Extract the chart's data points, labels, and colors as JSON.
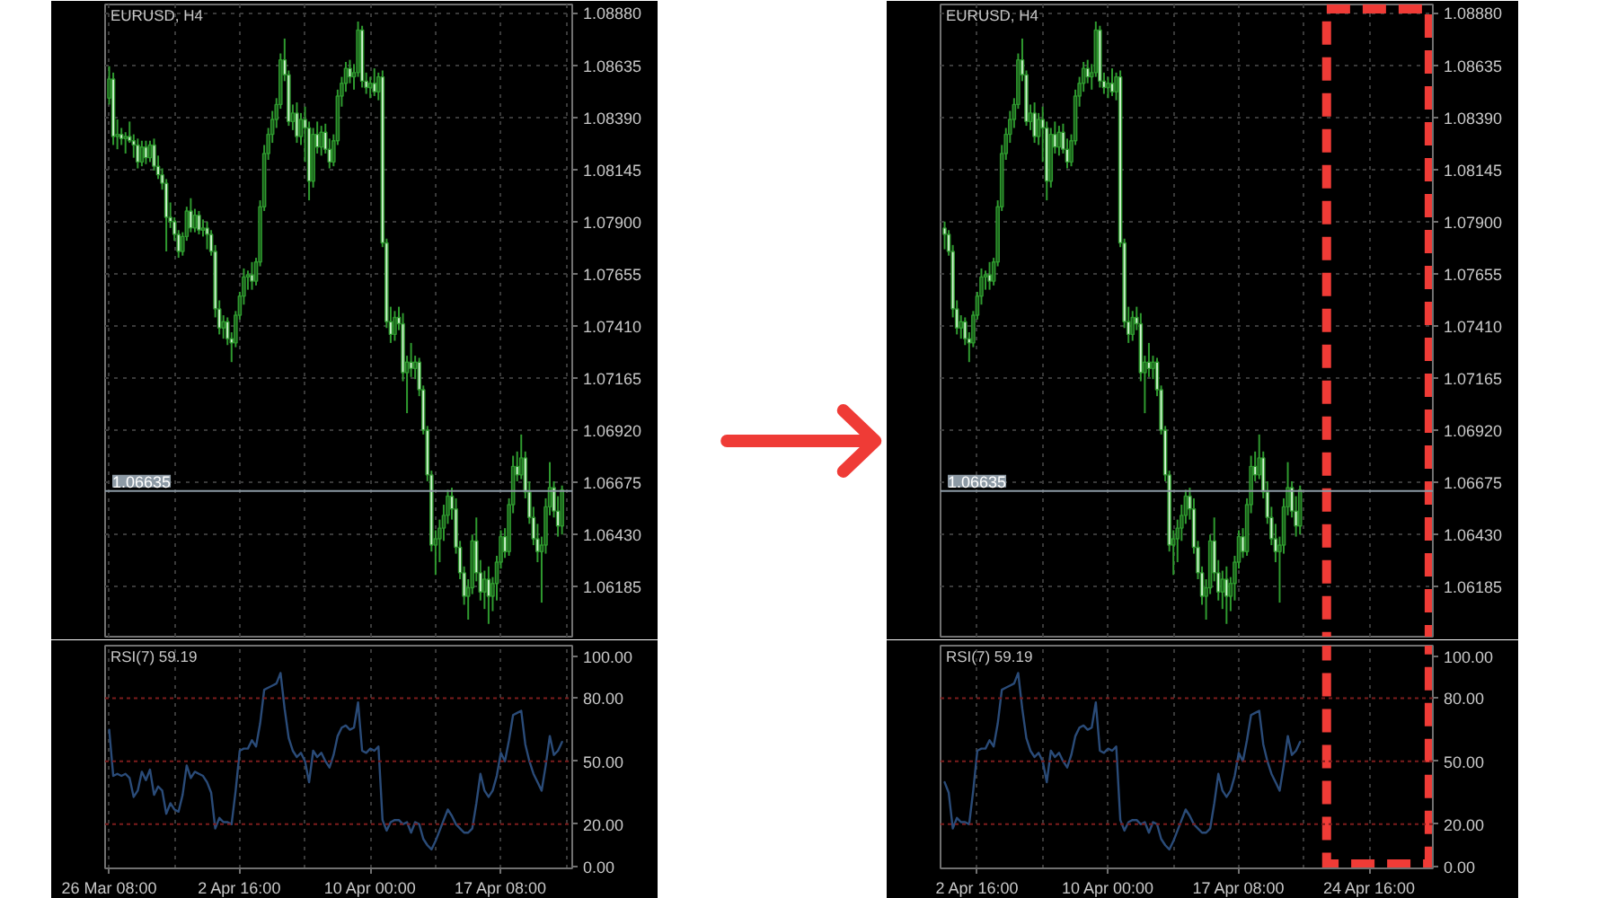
{
  "chart_data": [
    {
      "type": "candlestick",
      "title": "EURUSD, H4",
      "categories": [
        "26 Mar 08:00",
        null,
        null,
        null,
        null,
        null,
        null,
        null,
        null,
        null,
        null,
        null,
        null,
        null,
        null,
        null,
        null,
        null,
        null,
        null,
        null,
        null,
        null,
        null,
        null,
        null,
        null,
        null,
        null,
        null,
        null,
        null,
        "2 Apr 16:00",
        null,
        null,
        null,
        null,
        null,
        null,
        null,
        null,
        null,
        null,
        null,
        null,
        null,
        null,
        null,
        null,
        null,
        null,
        null,
        null,
        null,
        null,
        null,
        null,
        null,
        null,
        null,
        null,
        null,
        null,
        null,
        "10 Apr 00:00",
        null,
        null,
        null,
        null,
        null,
        null,
        null,
        null,
        null,
        null,
        null,
        null,
        null,
        null,
        null,
        null,
        null,
        null,
        null,
        null,
        null,
        null,
        null,
        null,
        null,
        null,
        null,
        null,
        null,
        null,
        null,
        "17 Apr 08:00",
        null,
        null,
        null,
        null,
        null,
        null,
        null,
        null,
        null,
        null,
        null,
        null,
        null,
        null,
        null
      ],
      "ohlc": [
        [
          1.0848,
          1.0863,
          1.0845,
          1.0857
        ],
        [
          1.0857,
          1.086,
          1.0826,
          1.083
        ],
        [
          1.083,
          1.0838,
          1.0824,
          1.0831
        ],
        [
          1.0831,
          1.0834,
          1.0826,
          1.0829
        ],
        [
          1.0829,
          1.0832,
          1.0822,
          1.083
        ],
        [
          1.083,
          1.0837,
          1.0827,
          1.0828
        ],
        [
          1.0828,
          1.0831,
          1.082,
          1.0826
        ],
        [
          1.0826,
          1.0829,
          1.0815,
          1.0818
        ],
        [
          1.0818,
          1.0828,
          1.0816,
          1.0825
        ],
        [
          1.0825,
          1.0828,
          1.0817,
          1.082
        ],
        [
          1.082,
          1.0828,
          1.0818,
          1.0826
        ],
        [
          1.0826,
          1.0829,
          1.0814,
          1.0816
        ],
        [
          1.0816,
          1.0821,
          1.081,
          1.0812
        ],
        [
          1.0812,
          1.0815,
          1.0805,
          1.0808
        ],
        [
          1.0808,
          1.081,
          1.0776,
          1.0792
        ],
        [
          1.0792,
          1.0799,
          1.0787,
          1.079
        ],
        [
          1.079,
          1.0792,
          1.0781,
          1.0784
        ],
        [
          1.0784,
          1.0786,
          1.0773,
          1.0776
        ],
        [
          1.0776,
          1.0785,
          1.0774,
          1.0783
        ],
        [
          1.0783,
          1.0797,
          1.0781,
          1.0795
        ],
        [
          1.0795,
          1.0801,
          1.0785,
          1.0787
        ],
        [
          1.0787,
          1.0796,
          1.0785,
          1.0793
        ],
        [
          1.0793,
          1.0795,
          1.0784,
          1.0786
        ],
        [
          1.0786,
          1.0791,
          1.0783,
          1.0787
        ],
        [
          1.0787,
          1.079,
          1.0777,
          1.0784
        ],
        [
          1.0784,
          1.0786,
          1.0774,
          1.0776
        ],
        [
          1.0776,
          1.0779,
          1.0745,
          1.0749
        ],
        [
          1.0749,
          1.0753,
          1.0737,
          1.074
        ],
        [
          1.074,
          1.0746,
          1.0735,
          1.0743
        ],
        [
          1.0743,
          1.0745,
          1.0732,
          1.0735
        ],
        [
          1.0735,
          1.0738,
          1.0724,
          1.0733
        ],
        [
          1.0733,
          1.0748,
          1.0731,
          1.0746
        ],
        [
          1.0746,
          1.0757,
          1.0744,
          1.0755
        ],
        [
          1.0755,
          1.0768,
          1.0751,
          1.0764
        ],
        [
          1.0764,
          1.0767,
          1.0758,
          1.0765
        ],
        [
          1.0765,
          1.0771,
          1.0758,
          1.0762
        ],
        [
          1.0762,
          1.0773,
          1.076,
          1.0771
        ],
        [
          1.0771,
          1.08,
          1.0769,
          1.0797
        ],
        [
          1.0797,
          1.0826,
          1.0795,
          1.0822
        ],
        [
          1.0822,
          1.0834,
          1.0819,
          1.0831
        ],
        [
          1.0831,
          1.0842,
          1.0827,
          1.0838
        ],
        [
          1.0838,
          1.0848,
          1.0834,
          1.0845
        ],
        [
          1.0845,
          1.0869,
          1.0843,
          1.0866
        ],
        [
          1.0866,
          1.0876,
          1.0856,
          1.0859
        ],
        [
          1.0859,
          1.0861,
          1.0835,
          1.0837
        ],
        [
          1.0837,
          1.0845,
          1.0833,
          1.0841
        ],
        [
          1.0841,
          1.0846,
          1.0827,
          1.083
        ],
        [
          1.083,
          1.0841,
          1.0826,
          1.0838
        ],
        [
          1.0838,
          1.0844,
          1.0818,
          1.0834
        ],
        [
          1.0834,
          1.0837,
          1.08,
          1.0809
        ],
        [
          1.0809,
          1.0834,
          1.0806,
          1.0831
        ],
        [
          1.0831,
          1.0837,
          1.0822,
          1.0825
        ],
        [
          1.0825,
          1.0835,
          1.0821,
          1.0832
        ],
        [
          1.0832,
          1.0836,
          1.0822,
          1.0824
        ],
        [
          1.0824,
          1.0829,
          1.0815,
          1.0818
        ],
        [
          1.0818,
          1.0831,
          1.0816,
          1.0828
        ],
        [
          1.0828,
          1.0852,
          1.0826,
          1.0849
        ],
        [
          1.0849,
          1.0858,
          1.0844,
          1.0855
        ],
        [
          1.0855,
          1.0865,
          1.0851,
          1.0862
        ],
        [
          1.0862,
          1.0866,
          1.0855,
          1.0858
        ],
        [
          1.0858,
          1.0864,
          1.0852,
          1.086
        ],
        [
          1.086,
          1.0884,
          1.0858,
          1.088
        ],
        [
          1.088,
          1.0882,
          1.0853,
          1.0856
        ],
        [
          1.0856,
          1.086,
          1.085,
          1.0853
        ],
        [
          1.0853,
          1.0858,
          1.0848,
          1.0855
        ],
        [
          1.0855,
          1.0862,
          1.0849,
          1.0851
        ],
        [
          1.0851,
          1.086,
          1.0847,
          1.0858
        ],
        [
          1.0858,
          1.0861,
          1.0778,
          1.078
        ],
        [
          1.078,
          1.0782,
          1.074,
          1.0743
        ],
        [
          1.0743,
          1.075,
          1.0733,
          1.0737
        ],
        [
          1.0737,
          1.0748,
          1.0734,
          1.0745
        ],
        [
          1.0745,
          1.075,
          1.0739,
          1.0742
        ],
        [
          1.0742,
          1.0747,
          1.0715,
          1.0719
        ],
        [
          1.0719,
          1.0727,
          1.07,
          1.0724
        ],
        [
          1.0724,
          1.0733,
          1.0717,
          1.0721
        ],
        [
          1.0721,
          1.0727,
          1.0716,
          1.0724
        ],
        [
          1.0724,
          1.0726,
          1.0708,
          1.0711
        ],
        [
          1.0711,
          1.0713,
          1.069,
          1.0692
        ],
        [
          1.0692,
          1.0694,
          1.0668,
          1.0671
        ],
        [
          1.0671,
          1.0673,
          1.0635,
          1.0638
        ],
        [
          1.0638,
          1.0645,
          1.0624,
          1.0641
        ],
        [
          1.0641,
          1.065,
          1.063,
          1.0646
        ],
        [
          1.0646,
          1.0657,
          1.064,
          1.0652
        ],
        [
          1.0652,
          1.0664,
          1.0648,
          1.0661
        ],
        [
          1.0661,
          1.0665,
          1.065,
          1.0655
        ],
        [
          1.0655,
          1.066,
          1.0634,
          1.0637
        ],
        [
          1.0637,
          1.064,
          1.0622,
          1.0625
        ],
        [
          1.0625,
          1.0628,
          1.061,
          1.0614
        ],
        [
          1.0614,
          1.0622,
          1.0603,
          1.0618
        ],
        [
          1.0618,
          1.0643,
          1.0615,
          1.064
        ],
        [
          1.064,
          1.0651,
          1.0621,
          1.0625
        ],
        [
          1.0625,
          1.0631,
          1.0612,
          1.0616
        ],
        [
          1.0616,
          1.0626,
          1.0608,
          1.0622
        ],
        [
          1.0622,
          1.0628,
          1.0601,
          1.0614
        ],
        [
          1.0614,
          1.0623,
          1.0607,
          1.062
        ],
        [
          1.062,
          1.0633,
          1.0612,
          1.063
        ],
        [
          1.063,
          1.0645,
          1.0627,
          1.0642
        ],
        [
          1.0642,
          1.0646,
          1.0632,
          1.0635
        ],
        [
          1.0635,
          1.066,
          1.0633,
          1.0657
        ],
        [
          1.0657,
          1.068,
          1.0653,
          1.0675
        ],
        [
          1.0675,
          1.0682,
          1.0668,
          1.0671
        ],
        [
          1.0671,
          1.069,
          1.0669,
          1.0679
        ],
        [
          1.0679,
          1.0682,
          1.066,
          1.0663
        ],
        [
          1.0663,
          1.0668,
          1.0648,
          1.0651
        ],
        [
          1.0651,
          1.0656,
          1.0638,
          1.0641
        ],
        [
          1.0641,
          1.0648,
          1.063,
          1.0635
        ],
        [
          1.0635,
          1.0642,
          1.0611,
          1.0638
        ],
        [
          1.0638,
          1.066,
          1.0634,
          1.0656
        ],
        [
          1.0656,
          1.0677,
          1.0652,
          1.0665
        ],
        [
          1.0665,
          1.0668,
          1.0651,
          1.0654
        ],
        [
          1.0654,
          1.0661,
          1.0642,
          1.0647
        ],
        [
          1.0647,
          1.0666,
          1.0643,
          1.0664
        ]
      ],
      "color": "#2f9a2f",
      "colors": [
        "#1b5e1b",
        "#d4f5d4",
        "#1b5e1b",
        "#d4f5d4",
        "#1b5e1b",
        "#d4f5d4",
        "#d4f5d4",
        "#d4f5d4",
        "#1b5e1b",
        "#d4f5d4",
        "#1b5e1b",
        "#d4f5d4",
        "#d4f5d4",
        "#d4f5d4",
        "#d4f5d4",
        "#d4f5d4",
        "#d4f5d4",
        "#d4f5d4",
        "#1b5e1b",
        "#1b5e1b",
        "#d4f5d4",
        "#1b5e1b",
        "#d4f5d4",
        "#1b5e1b",
        "#d4f5d4",
        "#d4f5d4",
        "#d4f5d4",
        "#d4f5d4",
        "#1b5e1b",
        "#d4f5d4",
        "#d4f5d4",
        "#1b5e1b",
        "#1b5e1b",
        "#1b5e1b",
        "#1b5e1b",
        "#d4f5d4",
        "#1b5e1b",
        "#1b5e1b",
        "#1b5e1b",
        "#1b5e1b",
        "#1b5e1b",
        "#1b5e1b",
        "#1b5e1b",
        "#d4f5d4",
        "#d4f5d4",
        "#1b5e1b",
        "#d4f5d4",
        "#1b5e1b",
        "#d4f5d4",
        "#d4f5d4",
        "#1b5e1b",
        "#d4f5d4",
        "#1b5e1b",
        "#d4f5d4",
        "#d4f5d4",
        "#1b5e1b",
        "#1b5e1b",
        "#1b5e1b",
        "#1b5e1b",
        "#d4f5d4",
        "#1b5e1b",
        "#1b5e1b",
        "#d4f5d4",
        "#d4f5d4",
        "#1b5e1b",
        "#d4f5d4",
        "#1b5e1b",
        "#d4f5d4",
        "#d4f5d4",
        "#d4f5d4",
        "#1b5e1b",
        "#d4f5d4",
        "#d4f5d4",
        "#1b5e1b",
        "#d4f5d4",
        "#1b5e1b",
        "#d4f5d4",
        "#d4f5d4",
        "#d4f5d4",
        "#d4f5d4",
        "#1b5e1b",
        "#1b5e1b",
        "#1b5e1b",
        "#1b5e1b",
        "#d4f5d4",
        "#d4f5d4",
        "#d4f5d4",
        "#d4f5d4",
        "#1b5e1b",
        "#1b5e1b",
        "#d4f5d4",
        "#d4f5d4",
        "#1b5e1b",
        "#d4f5d4",
        "#1b5e1b",
        "#1b5e1b",
        "#1b5e1b",
        "#d4f5d4",
        "#1b5e1b",
        "#1b5e1b",
        "#d4f5d4",
        "#1b5e1b",
        "#d4f5d4",
        "#d4f5d4",
        "#d4f5d4",
        "#d4f5d4",
        "#1b5e1b",
        "#1b5e1b",
        "#1b5e1b",
        "#d4f5d4",
        "#d4f5d4",
        "#1b5e1b"
      ],
      "ylim": [
        1.0595,
        1.0892
      ],
      "yticks": [
        {
          "value": 1.0888,
          "label": "1.08880"
        },
        1.08635,
        {
          "value": 1.0839,
          "label": "1.08390"
        },
        1.08145,
        {
          "value": 1.079,
          "label": "1.07900"
        },
        1.07655,
        {
          "value": 1.0741,
          "label": "1.07410"
        },
        1.07165,
        {
          "value": 1.0692,
          "label": "1.06920"
        },
        1.06675,
        {
          "value": 1.0643,
          "label": "1.06430"
        },
        1.06185
      ],
      "grid": true,
      "tick_labels": "y",
      "ref_lines": [
        {
          "axis": "y",
          "value": 1.06635,
          "label": "1.06635",
          "color": "#8d9aa5"
        }
      ]
    },
    {
      "type": "line",
      "title": "RSI(7) 59.19",
      "categories": [
        "26 Mar 08:00",
        null,
        null,
        null,
        null,
        null,
        null,
        null,
        null,
        null,
        null,
        null,
        null,
        null,
        null,
        null,
        null,
        null,
        null,
        null,
        null,
        null,
        null,
        null,
        null,
        null,
        null,
        null,
        null,
        null,
        null,
        null,
        "2 Apr 16:00",
        null,
        null,
        null,
        null,
        null,
        null,
        null,
        null,
        null,
        null,
        null,
        null,
        null,
        null,
        null,
        null,
        null,
        null,
        null,
        null,
        null,
        null,
        null,
        null,
        null,
        null,
        null,
        null,
        null,
        null,
        null,
        "10 Apr 00:00",
        null,
        null,
        null,
        null,
        null,
        null,
        null,
        null,
        null,
        null,
        null,
        null,
        null,
        null,
        null,
        null,
        null,
        null,
        null,
        null,
        null,
        null,
        null,
        null,
        null,
        null,
        null,
        null,
        null,
        null,
        null,
        "17 Apr 08:00",
        null,
        null,
        null,
        null,
        null,
        null,
        null,
        null,
        null,
        null,
        null,
        null,
        null,
        null,
        null
      ],
      "values": [
        65,
        43,
        44,
        43,
        44,
        42,
        33,
        36,
        45,
        41,
        46,
        34,
        38,
        36,
        25,
        30,
        27,
        26,
        34,
        48,
        42,
        45,
        44,
        43,
        40,
        35,
        18,
        23,
        21,
        21,
        20,
        36,
        55,
        56,
        56,
        60,
        57,
        68,
        84,
        85,
        86,
        87,
        92,
        75,
        61,
        55,
        52,
        54,
        50,
        40,
        55,
        52,
        54,
        50,
        47,
        53,
        62,
        66,
        67,
        65,
        66,
        78,
        55,
        54,
        56,
        55,
        57,
        22,
        17,
        21,
        22,
        22,
        20,
        21,
        16,
        21,
        20,
        13,
        10,
        8,
        12,
        17,
        22,
        27,
        24,
        20,
        18,
        16,
        16,
        18,
        30,
        44,
        36,
        33,
        36,
        43,
        54,
        50,
        60,
        72,
        73,
        74,
        58,
        50,
        44,
        40,
        36,
        48,
        62,
        53,
        55,
        59.19
      ],
      "color": "#2a4b78",
      "ylim": [
        -1,
        105
      ],
      "yticks": [
        {
          "value": 100,
          "label": "100.00"
        },
        {
          "value": 80,
          "label": "80.00"
        },
        {
          "value": 50,
          "label": "50.00"
        },
        {
          "value": 20,
          "label": "20.00"
        },
        {
          "value": 0,
          "label": "0.00"
        }
      ],
      "grid": "x",
      "ref_lines": [
        {
          "axis": "y",
          "value": 80,
          "color": "#7c1c1c",
          "line_style": "dotted"
        },
        {
          "axis": "y",
          "value": 50,
          "color": "#7c1c1c",
          "line_style": "dotted"
        },
        {
          "axis": "y",
          "value": 20,
          "color": "#7c1c1c",
          "line_style": "dotted"
        }
      ]
    },
    {
      "type": "candlestick",
      "title": "EURUSD, H4",
      "categories": [
        null,
        null,
        null,
        null,
        null,
        null,
        null,
        null,
        "2 Apr 16:00",
        null,
        null,
        null,
        null,
        null,
        null,
        null,
        null,
        null,
        null,
        null,
        null,
        null,
        null,
        null,
        null,
        null,
        null,
        null,
        null,
        null,
        null,
        null,
        null,
        null,
        null,
        null,
        null,
        null,
        null,
        null,
        "10 Apr 00:00",
        null,
        null,
        null,
        null,
        null,
        null,
        null,
        null,
        null,
        null,
        null,
        null,
        null,
        null,
        null,
        null,
        null,
        null,
        null,
        null,
        null,
        null,
        null,
        null,
        null,
        null,
        null,
        null,
        null,
        null,
        null,
        "17 Apr 08:00",
        null,
        null,
        null,
        null,
        null,
        null,
        null,
        null,
        null,
        null,
        null,
        null,
        null,
        null,
        null,
        null,
        null,
        null,
        null,
        null,
        null,
        null,
        null,
        null,
        null,
        null,
        null,
        null,
        null,
        null,
        null,
        "24 Apr 16:00",
        null,
        null,
        null,
        null,
        null,
        null,
        null,
        null,
        null,
        null,
        null,
        null,
        null
      ],
      "ohlc": [
        [
          1.0787,
          1.079,
          1.0777,
          1.0784
        ],
        [
          1.0784,
          1.0786,
          1.0774,
          1.0776
        ],
        [
          1.0776,
          1.0779,
          1.0745,
          1.0749
        ],
        [
          1.0749,
          1.0753,
          1.0737,
          1.074
        ],
        [
          1.074,
          1.0746,
          1.0735,
          1.0743
        ],
        [
          1.0743,
          1.0745,
          1.0732,
          1.0735
        ],
        [
          1.0735,
          1.0738,
          1.0724,
          1.0733
        ],
        [
          1.0733,
          1.0748,
          1.0731,
          1.0746
        ],
        [
          1.0746,
          1.0757,
          1.0744,
          1.0755
        ],
        [
          1.0755,
          1.0768,
          1.0751,
          1.0764
        ],
        [
          1.0764,
          1.0767,
          1.0758,
          1.0765
        ],
        [
          1.0765,
          1.0771,
          1.0758,
          1.0762
        ],
        [
          1.0762,
          1.0773,
          1.076,
          1.0771
        ],
        [
          1.0771,
          1.08,
          1.0769,
          1.0797
        ],
        [
          1.0797,
          1.0826,
          1.0795,
          1.0822
        ],
        [
          1.0822,
          1.0834,
          1.0819,
          1.0831
        ],
        [
          1.0831,
          1.0842,
          1.0827,
          1.0838
        ],
        [
          1.0838,
          1.0848,
          1.0834,
          1.0845
        ],
        [
          1.0845,
          1.0869,
          1.0843,
          1.0866
        ],
        [
          1.0866,
          1.0876,
          1.0856,
          1.0859
        ],
        [
          1.0859,
          1.0861,
          1.0835,
          1.0837
        ],
        [
          1.0837,
          1.0845,
          1.0833,
          1.0841
        ],
        [
          1.0841,
          1.0846,
          1.0827,
          1.083
        ],
        [
          1.083,
          1.0841,
          1.0826,
          1.0838
        ],
        [
          1.0838,
          1.0844,
          1.0818,
          1.0834
        ],
        [
          1.0834,
          1.0837,
          1.08,
          1.0809
        ],
        [
          1.0809,
          1.0834,
          1.0806,
          1.0831
        ],
        [
          1.0831,
          1.0837,
          1.0822,
          1.0825
        ],
        [
          1.0825,
          1.0835,
          1.0821,
          1.0832
        ],
        [
          1.0832,
          1.0836,
          1.0822,
          1.0824
        ],
        [
          1.0824,
          1.0829,
          1.0815,
          1.0818
        ],
        [
          1.0818,
          1.0831,
          1.0816,
          1.0828
        ],
        [
          1.0828,
          1.0852,
          1.0826,
          1.0849
        ],
        [
          1.0849,
          1.0858,
          1.0844,
          1.0855
        ],
        [
          1.0855,
          1.0865,
          1.0851,
          1.0862
        ],
        [
          1.0862,
          1.0866,
          1.0855,
          1.0858
        ],
        [
          1.0858,
          1.0864,
          1.0852,
          1.086
        ],
        [
          1.086,
          1.0884,
          1.0858,
          1.088
        ],
        [
          1.088,
          1.0882,
          1.0853,
          1.0856
        ],
        [
          1.0856,
          1.086,
          1.085,
          1.0853
        ],
        [
          1.0853,
          1.0858,
          1.0848,
          1.0855
        ],
        [
          1.0855,
          1.0862,
          1.0849,
          1.0851
        ],
        [
          1.0851,
          1.086,
          1.0847,
          1.0858
        ],
        [
          1.0858,
          1.0861,
          1.0778,
          1.078
        ],
        [
          1.078,
          1.0782,
          1.074,
          1.0743
        ],
        [
          1.0743,
          1.075,
          1.0733,
          1.0737
        ],
        [
          1.0737,
          1.0748,
          1.0734,
          1.0745
        ],
        [
          1.0745,
          1.075,
          1.0739,
          1.0742
        ],
        [
          1.0742,
          1.0747,
          1.0715,
          1.0719
        ],
        [
          1.0719,
          1.0727,
          1.07,
          1.0724
        ],
        [
          1.0724,
          1.0733,
          1.0717,
          1.0721
        ],
        [
          1.0721,
          1.0727,
          1.0716,
          1.0724
        ],
        [
          1.0724,
          1.0726,
          1.0708,
          1.0711
        ],
        [
          1.0711,
          1.0713,
          1.069,
          1.0692
        ],
        [
          1.0692,
          1.0694,
          1.0668,
          1.0671
        ],
        [
          1.0671,
          1.0673,
          1.0635,
          1.0638
        ],
        [
          1.0638,
          1.0645,
          1.0624,
          1.0641
        ],
        [
          1.0641,
          1.065,
          1.063,
          1.0646
        ],
        [
          1.0646,
          1.0657,
          1.064,
          1.0652
        ],
        [
          1.0652,
          1.0664,
          1.0648,
          1.0661
        ],
        [
          1.0661,
          1.0665,
          1.065,
          1.0655
        ],
        [
          1.0655,
          1.066,
          1.0634,
          1.0637
        ],
        [
          1.0637,
          1.064,
          1.0622,
          1.0625
        ],
        [
          1.0625,
          1.0628,
          1.061,
          1.0614
        ],
        [
          1.0614,
          1.0622,
          1.0603,
          1.0618
        ],
        [
          1.0618,
          1.0643,
          1.0615,
          1.064
        ],
        [
          1.064,
          1.0651,
          1.0621,
          1.0625
        ],
        [
          1.0625,
          1.0631,
          1.0612,
          1.0616
        ],
        [
          1.0616,
          1.0626,
          1.0608,
          1.0622
        ],
        [
          1.0622,
          1.0628,
          1.0601,
          1.0614
        ],
        [
          1.0614,
          1.0623,
          1.0607,
          1.062
        ],
        [
          1.062,
          1.0633,
          1.0612,
          1.063
        ],
        [
          1.063,
          1.0645,
          1.0627,
          1.0642
        ],
        [
          1.0642,
          1.0646,
          1.0632,
          1.0635
        ],
        [
          1.0635,
          1.066,
          1.0633,
          1.0657
        ],
        [
          1.0657,
          1.068,
          1.0653,
          1.0675
        ],
        [
          1.0675,
          1.0682,
          1.0668,
          1.0671
        ],
        [
          1.0671,
          1.069,
          1.0669,
          1.0679
        ],
        [
          1.0679,
          1.0682,
          1.066,
          1.0663
        ],
        [
          1.0663,
          1.0668,
          1.0648,
          1.0651
        ],
        [
          1.0651,
          1.0656,
          1.0638,
          1.0641
        ],
        [
          1.0641,
          1.0648,
          1.063,
          1.0635
        ],
        [
          1.0635,
          1.0642,
          1.0611,
          1.0638
        ],
        [
          1.0638,
          1.066,
          1.0634,
          1.0656
        ],
        [
          1.0656,
          1.0677,
          1.0652,
          1.0665
        ],
        [
          1.0665,
          1.0668,
          1.0651,
          1.0654
        ],
        [
          1.0654,
          1.0661,
          1.0642,
          1.0647
        ],
        [
          1.0647,
          1.0666,
          1.0643,
          1.0664
        ],
        null,
        null,
        null,
        null,
        null,
        null,
        null,
        null,
        null,
        null,
        null,
        null,
        null,
        null,
        null,
        null,
        null,
        null,
        null,
        null,
        null,
        null,
        null,
        null,
        null,
        null,
        null,
        null,
        null,
        null
      ],
      "color": "#2f9a2f",
      "colors": [
        "#d4f5d4",
        "#d4f5d4",
        "#d4f5d4",
        "#d4f5d4",
        "#1b5e1b",
        "#d4f5d4",
        "#d4f5d4",
        "#1b5e1b",
        "#1b5e1b",
        "#1b5e1b",
        "#1b5e1b",
        "#d4f5d4",
        "#1b5e1b",
        "#1b5e1b",
        "#1b5e1b",
        "#1b5e1b",
        "#1b5e1b",
        "#1b5e1b",
        "#1b5e1b",
        "#d4f5d4",
        "#d4f5d4",
        "#1b5e1b",
        "#d4f5d4",
        "#1b5e1b",
        "#d4f5d4",
        "#d4f5d4",
        "#1b5e1b",
        "#d4f5d4",
        "#1b5e1b",
        "#d4f5d4",
        "#d4f5d4",
        "#1b5e1b",
        "#1b5e1b",
        "#1b5e1b",
        "#1b5e1b",
        "#d4f5d4",
        "#1b5e1b",
        "#1b5e1b",
        "#d4f5d4",
        "#d4f5d4",
        "#1b5e1b",
        "#d4f5d4",
        "#1b5e1b",
        "#d4f5d4",
        "#d4f5d4",
        "#d4f5d4",
        "#1b5e1b",
        "#d4f5d4",
        "#d4f5d4",
        "#1b5e1b",
        "#d4f5d4",
        "#1b5e1b",
        "#d4f5d4",
        "#d4f5d4",
        "#d4f5d4",
        "#d4f5d4",
        "#1b5e1b",
        "#1b5e1b",
        "#1b5e1b",
        "#1b5e1b",
        "#d4f5d4",
        "#d4f5d4",
        "#d4f5d4",
        "#d4f5d4",
        "#1b5e1b",
        "#1b5e1b",
        "#d4f5d4",
        "#d4f5d4",
        "#1b5e1b",
        "#d4f5d4",
        "#1b5e1b",
        "#1b5e1b",
        "#1b5e1b",
        "#d4f5d4",
        "#1b5e1b",
        "#1b5e1b",
        "#d4f5d4",
        "#1b5e1b",
        "#d4f5d4",
        "#d4f5d4",
        "#d4f5d4",
        "#d4f5d4",
        "#1b5e1b",
        "#1b5e1b",
        "#1b5e1b",
        "#d4f5d4",
        "#d4f5d4",
        "#1b5e1b",
        null,
        null,
        null,
        null,
        null,
        null,
        null,
        null,
        null,
        null,
        null,
        null,
        null,
        null,
        null,
        null,
        null,
        null,
        null,
        null,
        null,
        null,
        null,
        null,
        null,
        null,
        null,
        null,
        null,
        null
      ],
      "ylim": [
        1.0595,
        1.0892
      ],
      "yticks": [
        {
          "value": 1.0888,
          "label": "1.08880"
        },
        1.08635,
        {
          "value": 1.0839,
          "label": "1.08390"
        },
        1.08145,
        {
          "value": 1.079,
          "label": "1.07900"
        },
        1.07655,
        {
          "value": 1.0741,
          "label": "1.07410"
        },
        1.07165,
        {
          "value": 1.0692,
          "label": "1.06920"
        },
        1.06675,
        {
          "value": 1.0643,
          "label": "1.06430"
        },
        1.06185
      ],
      "grid": true,
      "tick_labels": "y",
      "ref_lines": [
        {
          "axis": "y",
          "value": 1.06635,
          "label": "1.06635",
          "color": "#8d9aa5"
        }
      ]
    },
    {
      "type": "line",
      "title": "RSI(7) 59.19",
      "categories": [
        null,
        null,
        null,
        null,
        null,
        null,
        null,
        null,
        "2 Apr 16:00",
        null,
        null,
        null,
        null,
        null,
        null,
        null,
        null,
        null,
        null,
        null,
        null,
        null,
        null,
        null,
        null,
        null,
        null,
        null,
        null,
        null,
        null,
        null,
        null,
        null,
        null,
        null,
        null,
        null,
        null,
        null,
        "10 Apr 00:00",
        null,
        null,
        null,
        null,
        null,
        null,
        null,
        null,
        null,
        null,
        null,
        null,
        null,
        null,
        null,
        null,
        null,
        null,
        null,
        null,
        null,
        null,
        null,
        null,
        null,
        null,
        null,
        null,
        null,
        null,
        null,
        "17 Apr 08:00",
        null,
        null,
        null,
        null,
        null,
        null,
        null,
        null,
        null,
        null,
        null,
        null,
        null,
        null,
        null,
        null,
        null,
        null,
        null,
        null,
        null,
        null,
        null,
        null,
        null,
        null,
        null,
        null,
        null,
        null,
        null,
        "24 Apr 16:00",
        null,
        null,
        null,
        null,
        null,
        null,
        null,
        null,
        null,
        null,
        null,
        null,
        null
      ],
      "values": [
        40,
        35,
        18,
        23,
        21,
        21,
        20,
        36,
        55,
        56,
        56,
        60,
        57,
        68,
        84,
        85,
        86,
        87,
        92,
        75,
        61,
        55,
        52,
        54,
        50,
        40,
        55,
        52,
        54,
        50,
        47,
        53,
        62,
        66,
        67,
        65,
        66,
        78,
        55,
        54,
        56,
        55,
        57,
        22,
        17,
        21,
        22,
        22,
        20,
        21,
        16,
        21,
        20,
        13,
        10,
        8,
        12,
        17,
        22,
        27,
        24,
        20,
        18,
        16,
        16,
        18,
        30,
        44,
        36,
        33,
        36,
        43,
        54,
        50,
        60,
        72,
        73,
        74,
        58,
        50,
        44,
        40,
        36,
        48,
        62,
        53,
        55,
        59.19,
        null,
        null,
        null,
        null,
        null,
        null,
        null,
        null,
        null,
        null,
        null,
        null,
        null,
        null,
        null,
        null,
        null,
        null,
        null,
        null,
        null,
        null,
        null,
        null,
        null,
        null,
        null,
        null,
        null,
        null
      ],
      "color": "#2a4b78",
      "ylim": [
        -1,
        105
      ],
      "yticks": [
        {
          "value": 100,
          "label": "100.00"
        },
        {
          "value": 80,
          "label": "80.00"
        },
        {
          "value": 50,
          "label": "50.00"
        },
        {
          "value": 20,
          "label": "20.00"
        },
        {
          "value": 0,
          "label": "0.00"
        }
      ],
      "grid": "x",
      "ref_lines": [
        {
          "axis": "y",
          "value": 80,
          "color": "#7c1c1c",
          "line_style": "dotted"
        },
        {
          "axis": "y",
          "value": 50,
          "color": "#7c1c1c",
          "line_style": "dotted"
        },
        {
          "axis": "y",
          "value": 20,
          "color": "#7c1c1c",
          "line_style": "dotted"
        }
      ]
    }
  ]
}
